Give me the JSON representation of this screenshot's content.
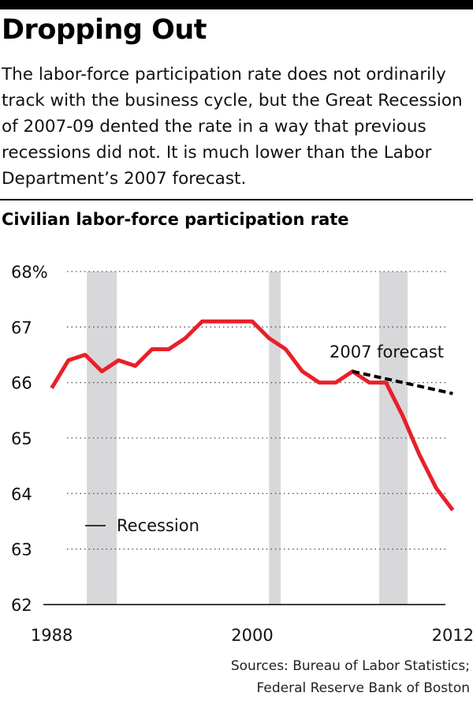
{
  "header": {
    "title": "Dropping Out",
    "subtitle": "The labor-force participation rate does not ordinarily track with the business cycle, but the Great Recession of 2007-09 dented the rate in a way that previous recessions did not. It is much lower than the Labor Department’s 2007 forecast."
  },
  "chart_data": {
    "type": "line",
    "title": "Civilian labor-force participation rate",
    "xlabel": "",
    "ylabel": "",
    "xlim": [
      1987.5,
      2012.5
    ],
    "ylim": [
      62,
      68
    ],
    "y_ticks": [
      {
        "value": 68,
        "label": "68%"
      },
      {
        "value": 67,
        "label": "67"
      },
      {
        "value": 66,
        "label": "66"
      },
      {
        "value": 65,
        "label": "65"
      },
      {
        "value": 64,
        "label": "64"
      },
      {
        "value": 63,
        "label": "63"
      },
      {
        "value": 62,
        "label": "62"
      }
    ],
    "x_ticks": [
      {
        "value": 1988,
        "label": "1988"
      },
      {
        "value": 2000,
        "label": "2000"
      },
      {
        "value": 2012,
        "label": "2012"
      }
    ],
    "grid": true,
    "recessions": [
      [
        1990.1,
        1991.9
      ],
      [
        2001.0,
        2001.7
      ],
      [
        2007.6,
        2009.3
      ]
    ],
    "series": [
      {
        "color": "#e8202a",
        "style": "solid",
        "x": [
          1988,
          1989,
          1990,
          1991,
          1992,
          1993,
          1994,
          1995,
          1996,
          1997,
          1998,
          1999,
          2000,
          2001,
          2002,
          2003,
          2004,
          2005,
          2006,
          2007,
          2008,
          2009,
          2010,
          2011,
          2012
        ],
        "y": [
          65.9,
          66.4,
          66.5,
          66.2,
          66.4,
          66.3,
          66.6,
          66.6,
          66.8,
          67.1,
          67.1,
          67.1,
          67.1,
          66.8,
          66.6,
          66.2,
          66.0,
          66.0,
          66.2,
          66.0,
          66.0,
          65.4,
          64.7,
          64.1,
          63.7
        ]
      },
      {
        "name": "2007 forecast",
        "color": "#000000",
        "style": "dashed",
        "x": [
          2006,
          2012
        ],
        "y": [
          66.2,
          65.8
        ]
      }
    ],
    "annotations": [
      {
        "text": "2007 forecast"
      }
    ],
    "legend": {
      "label": "Recession",
      "position": "bottom-left"
    }
  },
  "footer": {
    "source_line1": "Sources: Bureau of Labor Statistics;",
    "source_line2": "Federal Reserve Bank of Boston"
  },
  "colors": {
    "line": "#e8202a",
    "recession_band": "#d8d8da",
    "forecast": "#000000",
    "grid": "#555555"
  }
}
